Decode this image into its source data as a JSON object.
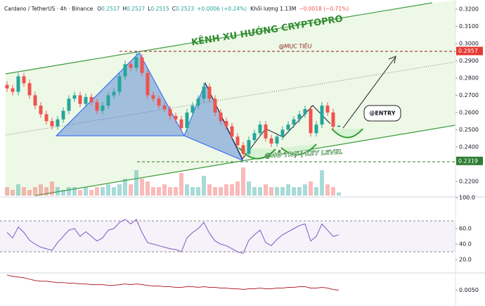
{
  "chart_data": [
    {
      "type": "candlestick",
      "title": "Cardano / TetherUS · 4h · Binance",
      "ohlc_labels": [
        "O",
        "H",
        "L",
        "C"
      ],
      "change_label": "+0.0006 (+0.24%)",
      "volume_label": "Khối lượng 1.13M",
      "volume_change_label": "−0.0018 (−0.71%)",
      "channel_title": "KÊNH XU HƯỚNG CRYPTOPRO",
      "target_label": "@MỤC TIÊU",
      "entry_label": "@ENTRY",
      "support_label": "@HỖ TRỢ | KEY LEVEL",
      "target_price": 0.2957,
      "support_price": 0.2319,
      "up_color": "#26a69a",
      "down_color": "#ef5350",
      "open": [
        0.276,
        0.274,
        0.272,
        0.281,
        0.277,
        0.27,
        0.264,
        0.259,
        0.255,
        0.252,
        0.256,
        0.261,
        0.268,
        0.27,
        0.265,
        0.269,
        0.266,
        0.261,
        0.264,
        0.27,
        0.272,
        0.281,
        0.288,
        0.286,
        0.292,
        0.283,
        0.27,
        0.268,
        0.264,
        0.262,
        0.258,
        0.256,
        0.251,
        0.26,
        0.264,
        0.268,
        0.275,
        0.268,
        0.26,
        0.255,
        0.252,
        0.246,
        0.241,
        0.236,
        0.244,
        0.248,
        0.253,
        0.245,
        0.242,
        0.246,
        0.25,
        0.253,
        0.256,
        0.259,
        0.262,
        0.248,
        0.253,
        0.264,
        0.26,
        0.2517
      ],
      "high": [
        0.278,
        0.276,
        0.283,
        0.283,
        0.279,
        0.272,
        0.266,
        0.261,
        0.257,
        0.258,
        0.263,
        0.27,
        0.272,
        0.272,
        0.271,
        0.271,
        0.268,
        0.266,
        0.272,
        0.274,
        0.283,
        0.29,
        0.29,
        0.2955,
        0.294,
        0.285,
        0.272,
        0.27,
        0.266,
        0.264,
        0.26,
        0.258,
        0.262,
        0.266,
        0.27,
        0.2775,
        0.277,
        0.27,
        0.262,
        0.257,
        0.254,
        0.248,
        0.243,
        0.246,
        0.25,
        0.255,
        0.255,
        0.247,
        0.248,
        0.252,
        0.255,
        0.258,
        0.261,
        0.264,
        0.264,
        0.255,
        0.266,
        0.266,
        0.262,
        0.2527
      ],
      "low": [
        0.272,
        0.27,
        0.27,
        0.275,
        0.268,
        0.262,
        0.257,
        0.253,
        0.25,
        0.25,
        0.254,
        0.259,
        0.266,
        0.263,
        0.263,
        0.264,
        0.259,
        0.259,
        0.262,
        0.268,
        0.27,
        0.279,
        0.284,
        0.284,
        0.281,
        0.268,
        0.266,
        0.262,
        0.26,
        0.256,
        0.254,
        0.249,
        0.249,
        0.258,
        0.262,
        0.266,
        0.266,
        0.258,
        0.253,
        0.25,
        0.244,
        0.239,
        0.2335,
        0.234,
        0.242,
        0.246,
        0.243,
        0.24,
        0.24,
        0.244,
        0.248,
        0.251,
        0.254,
        0.257,
        0.246,
        0.246,
        0.251,
        0.258,
        0.2497,
        0.2515
      ],
      "close": [
        0.274,
        0.272,
        0.281,
        0.277,
        0.27,
        0.264,
        0.259,
        0.255,
        0.252,
        0.256,
        0.261,
        0.268,
        0.27,
        0.265,
        0.269,
        0.266,
        0.261,
        0.264,
        0.27,
        0.272,
        0.281,
        0.288,
        0.286,
        0.292,
        0.283,
        0.27,
        0.268,
        0.264,
        0.262,
        0.258,
        0.256,
        0.251,
        0.26,
        0.264,
        0.268,
        0.275,
        0.268,
        0.26,
        0.255,
        0.252,
        0.246,
        0.241,
        0.236,
        0.244,
        0.248,
        0.253,
        0.245,
        0.242,
        0.246,
        0.25,
        0.253,
        0.256,
        0.259,
        0.262,
        0.248,
        0.253,
        0.264,
        0.26,
        0.2517,
        0.2523
      ],
      "volume": [
        3,
        2,
        4,
        3,
        2,
        3,
        4,
        3,
        5,
        3,
        2,
        3,
        3,
        2,
        3,
        2,
        3,
        3,
        4,
        3,
        4,
        6,
        4,
        9,
        6,
        5,
        3,
        3,
        4,
        3,
        3,
        8,
        4,
        3,
        3,
        7,
        4,
        3,
        3,
        4,
        4,
        5,
        10,
        5,
        3,
        3,
        4,
        3,
        3,
        3,
        4,
        3,
        3,
        4,
        5,
        3,
        9,
        4,
        3,
        1.13
      ],
      "ylim": [
        0.2118,
        0.3253
      ],
      "yticks": [
        {
          "value": 0.32,
          "label": "0.3200"
        },
        {
          "value": 0.31,
          "label": "0.3100"
        },
        {
          "value": 0.3,
          "label": "0.3000"
        },
        {
          "value": 0.29,
          "label": "0.2900"
        },
        {
          "value": 0.28,
          "label": "0.2800"
        },
        {
          "value": 0.27,
          "label": "0.2700"
        },
        {
          "value": 0.26,
          "label": "0.2600"
        },
        {
          "value": 0.25,
          "label": "0.2500"
        },
        {
          "value": 0.24,
          "label": "0.2400"
        },
        {
          "value": 0.22,
          "label": "0.2200"
        }
      ]
    },
    {
      "type": "line",
      "color": "#7e57c2",
      "values": [
        55,
        48,
        62,
        55,
        45,
        40,
        36,
        34,
        32,
        42,
        50,
        58,
        60,
        50,
        56,
        50,
        44,
        48,
        58,
        60,
        68,
        72,
        66,
        72,
        55,
        42,
        40,
        38,
        36,
        34,
        33,
        30,
        48,
        55,
        60,
        68,
        54,
        44,
        40,
        38,
        34,
        30,
        28,
        45,
        52,
        58,
        42,
        38,
        46,
        52,
        56,
        60,
        64,
        66,
        44,
        50,
        66,
        58,
        50,
        52
      ],
      "band_levels": [
        30,
        70
      ],
      "ylim": [
        0,
        100
      ],
      "yticks": [
        {
          "value": 100,
          "label": "100.0"
        },
        {
          "value": 60,
          "label": "60.0"
        },
        {
          "value": 40,
          "label": "40.0"
        },
        {
          "value": 20,
          "label": "20.0"
        }
      ]
    },
    {
      "type": "line",
      "color": "#b22833",
      "values": [
        0.0072,
        0.007,
        0.0069,
        0.0068,
        0.0066,
        0.0064,
        0.0063,
        0.0063,
        0.0062,
        0.0061,
        0.0061,
        0.006,
        0.006,
        0.0059,
        0.0059,
        0.0058,
        0.0058,
        0.0058,
        0.0057,
        0.0057,
        0.0058,
        0.0059,
        0.0058,
        0.0059,
        0.0058,
        0.0057,
        0.0056,
        0.0056,
        0.0055,
        0.0055,
        0.0054,
        0.0054,
        0.0055,
        0.0055,
        0.0054,
        0.0055,
        0.0054,
        0.0054,
        0.0053,
        0.0053,
        0.0052,
        0.0052,
        0.0051,
        0.0052,
        0.0052,
        0.0053,
        0.0052,
        0.0052,
        0.0053,
        0.0053,
        0.0054,
        0.0054,
        0.0055,
        0.0055,
        0.0053,
        0.0053,
        0.0054,
        0.0053,
        0.0051,
        0.005
      ],
      "ylim": [
        0.003,
        0.0075
      ],
      "yticks": [
        {
          "value": 0.005,
          "label": "0.0050"
        }
      ]
    }
  ]
}
